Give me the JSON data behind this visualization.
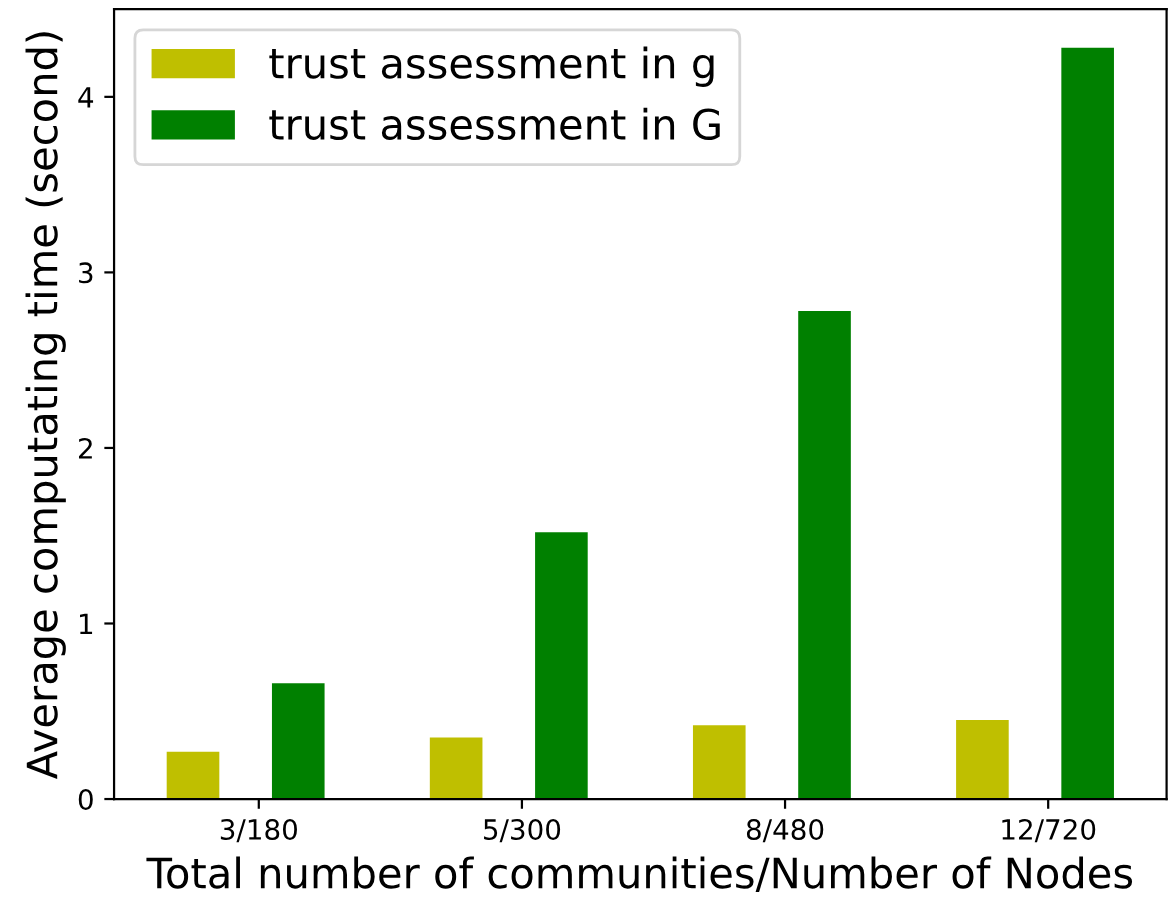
{
  "chart_data": {
    "type": "bar",
    "xlabel": "Total number of communities/Number of Nodes",
    "ylabel": "Average computating time (second)",
    "categories": [
      "3/180",
      "5/300",
      "8/480",
      "12/720"
    ],
    "series": [
      {
        "name": "trust assessment in g",
        "color": "#bfbf00",
        "values": [
          0.27,
          0.35,
          0.42,
          0.45
        ]
      },
      {
        "name": "trust assessment in G",
        "color": "#008000",
        "values": [
          0.66,
          1.52,
          2.78,
          4.28
        ]
      }
    ],
    "ylim": [
      0,
      4.5
    ],
    "yticks": [
      0,
      1,
      2,
      3,
      4
    ],
    "legend": "top left",
    "grid": false
  }
}
